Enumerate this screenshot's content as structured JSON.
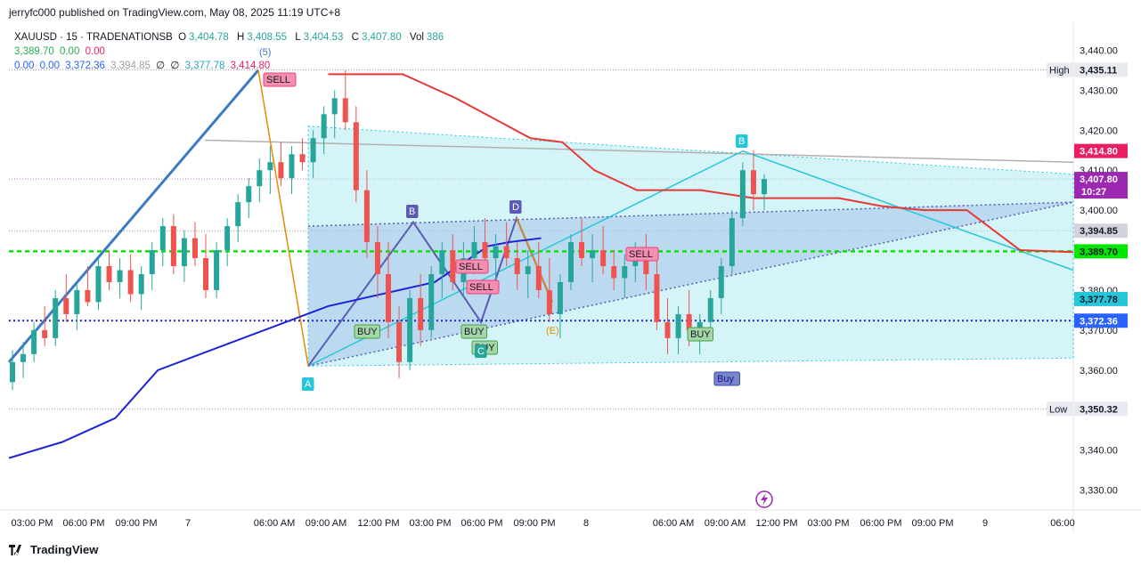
{
  "publish_line": "jerryfc000 published on TradingView.com, May 08, 2025 11:19 UTC+8",
  "legend": {
    "symbol": "XAUUSD · 15 · TRADENATIONSB",
    "o_label": "O",
    "o": "3,404.78",
    "h_label": "H",
    "h": "3,408.55",
    "l_label": "L",
    "l": "3,404.53",
    "c_label": "C",
    "c": "3,407.80",
    "vol_label": "Vol",
    "vol": "386",
    "row2": [
      "3,389.70",
      "0.00",
      "0.00"
    ],
    "row3": [
      "0.00",
      "0.00",
      "3,372.36",
      "3,394.85",
      "∅",
      "∅",
      "3,377.78",
      "3,414.80"
    ]
  },
  "brand": "TradingView",
  "colors": {
    "up": "#26a69a",
    "down": "#ef5350",
    "red_line": "#e53935",
    "blue_line": "#1e22d8",
    "green_line": "#3bd13b",
    "cyan": "#26c6da",
    "purple": "#5b5bb5",
    "orange": "#e68a00"
  },
  "chart_data": {
    "type": "candlestick",
    "ylim": [
      3325,
      3447
    ],
    "y_ticks": [
      "3,440.00",
      "3,430.00",
      "3,420.00",
      "3,410.00",
      "3,400.00",
      "3,380.00",
      "3,370.00",
      "3,360.00",
      "3,340.00",
      "3,330.00"
    ],
    "y_tick_values": [
      3440,
      3430,
      3420,
      3410,
      3400,
      3380,
      3370,
      3360,
      3340,
      3330
    ],
    "x_ticks": [
      "03:00 PM",
      "06:00 PM",
      "09:00 PM",
      "7",
      "06:00 AM",
      "09:00 AM",
      "12:00 PM",
      "03:00 PM",
      "06:00 PM",
      "09:00 PM",
      "8",
      "06:00 AM",
      "09:00 AM",
      "12:00 PM",
      "03:00 PM",
      "06:00 PM",
      "09:00 PM",
      "9",
      "06:00"
    ],
    "price_labels": [
      {
        "prefix": "High",
        "text": "3,435.11",
        "value": 3435.11,
        "bg": "#e8eaf0",
        "fg": "#131722"
      },
      {
        "prefix": "",
        "text": "3,414.80",
        "value": 3414.8,
        "bg": "#e91e63",
        "fg": "#ffffff"
      },
      {
        "prefix": "",
        "text": "3,407.80",
        "value": 3407.8,
        "bg": "#9c27b0",
        "fg": "#ffffff",
        "sub": "10:27"
      },
      {
        "prefix": "",
        "text": "3,394.85",
        "value": 3394.85,
        "bg": "#d1d4dc",
        "fg": "#131722"
      },
      {
        "prefix": "",
        "text": "3,389.70",
        "value": 3389.7,
        "bg": "#00e600",
        "fg": "#131722"
      },
      {
        "prefix": "",
        "text": "3,377.78",
        "value": 3377.78,
        "bg": "#26c6da",
        "fg": "#131722"
      },
      {
        "prefix": "",
        "text": "3,372.36",
        "value": 3372.36,
        "bg": "#2962ff",
        "fg": "#ffffff"
      },
      {
        "prefix": "Low",
        "text": "3,350.32",
        "value": 3350.32,
        "bg": "#e8eaf0",
        "fg": "#131722"
      }
    ],
    "candles_note": "OHLC estimated from the visible price action",
    "candles": [
      [
        3357,
        3365,
        3355,
        3362
      ],
      [
        3362,
        3367,
        3358,
        3364
      ],
      [
        3364,
        3372,
        3362,
        3370
      ],
      [
        3370,
        3376,
        3366,
        3368
      ],
      [
        3368,
        3380,
        3366,
        3378
      ],
      [
        3378,
        3384,
        3372,
        3374
      ],
      [
        3374,
        3382,
        3370,
        3380
      ],
      [
        3380,
        3386,
        3376,
        3377
      ],
      [
        3377,
        3388,
        3375,
        3386
      ],
      [
        3386,
        3390,
        3380,
        3382
      ],
      [
        3382,
        3388,
        3378,
        3385
      ],
      [
        3385,
        3389,
        3377,
        3379
      ],
      [
        3379,
        3386,
        3375,
        3384
      ],
      [
        3384,
        3392,
        3380,
        3390
      ],
      [
        3390,
        3398,
        3386,
        3396
      ],
      [
        3396,
        3399,
        3384,
        3386
      ],
      [
        3386,
        3395,
        3382,
        3393
      ],
      [
        3393,
        3397,
        3386,
        3388
      ],
      [
        3388,
        3394,
        3378,
        3380
      ],
      [
        3380,
        3392,
        3378,
        3390
      ],
      [
        3390,
        3398,
        3386,
        3396
      ],
      [
        3396,
        3404,
        3392,
        3402
      ],
      [
        3402,
        3408,
        3398,
        3406
      ],
      [
        3406,
        3413,
        3402,
        3410
      ],
      [
        3410,
        3416,
        3404,
        3412
      ],
      [
        3412,
        3417,
        3406,
        3408
      ],
      [
        3408,
        3416,
        3404,
        3414
      ],
      [
        3414,
        3418,
        3410,
        3412
      ],
      [
        3412,
        3420,
        3408,
        3418
      ],
      [
        3418,
        3426,
        3414,
        3424
      ],
      [
        3424,
        3430,
        3418,
        3428
      ],
      [
        3428,
        3435,
        3420,
        3422
      ],
      [
        3422,
        3426,
        3402,
        3405
      ],
      [
        3405,
        3410,
        3388,
        3392
      ],
      [
        3392,
        3396,
        3378,
        3384
      ],
      [
        3384,
        3392,
        3368,
        3372
      ],
      [
        3372,
        3376,
        3358,
        3362
      ],
      [
        3362,
        3380,
        3360,
        3378
      ],
      [
        3378,
        3384,
        3366,
        3370
      ],
      [
        3370,
        3386,
        3368,
        3384
      ],
      [
        3384,
        3392,
        3378,
        3390
      ],
      [
        3390,
        3394,
        3380,
        3382
      ],
      [
        3382,
        3392,
        3378,
        3388
      ],
      [
        3388,
        3396,
        3384,
        3392
      ],
      [
        3392,
        3398,
        3386,
        3388
      ],
      [
        3388,
        3394,
        3382,
        3391
      ],
      [
        3391,
        3397,
        3386,
        3388
      ],
      [
        3388,
        3392,
        3380,
        3384
      ],
      [
        3384,
        3390,
        3378,
        3386
      ],
      [
        3386,
        3392,
        3378,
        3380
      ],
      [
        3380,
        3388,
        3372,
        3374
      ],
      [
        3374,
        3384,
        3368,
        3382
      ],
      [
        3382,
        3394,
        3380,
        3392
      ],
      [
        3392,
        3398,
        3386,
        3388
      ],
      [
        3388,
        3394,
        3382,
        3390
      ],
      [
        3390,
        3396,
        3384,
        3386
      ],
      [
        3386,
        3390,
        3380,
        3383
      ],
      [
        3383,
        3389,
        3378,
        3386
      ],
      [
        3386,
        3392,
        3382,
        3388
      ],
      [
        3388,
        3394,
        3380,
        3384
      ],
      [
        3384,
        3390,
        3370,
        3372
      ],
      [
        3372,
        3378,
        3364,
        3368
      ],
      [
        3368,
        3376,
        3364,
        3374
      ],
      [
        3374,
        3380,
        3366,
        3370
      ],
      [
        3370,
        3374,
        3364,
        3372
      ],
      [
        3372,
        3380,
        3370,
        3378
      ],
      [
        3378,
        3388,
        3374,
        3386
      ],
      [
        3386,
        3400,
        3384,
        3398
      ],
      [
        3398,
        3412,
        3396,
        3410
      ],
      [
        3410,
        3415,
        3400,
        3404
      ],
      [
        3404,
        3409,
        3400,
        3407.8
      ]
    ],
    "series": [
      {
        "name": "",
        "color": "#e53935",
        "points": [
          [
            0.3,
            3434
          ],
          [
            0.37,
            3434
          ],
          [
            0.42,
            3428
          ],
          [
            0.49,
            3418
          ],
          [
            0.52,
            3417
          ],
          [
            0.55,
            3410
          ],
          [
            0.59,
            3405
          ],
          [
            0.63,
            3405
          ],
          [
            0.65,
            3405
          ],
          [
            0.7,
            3403
          ],
          [
            0.78,
            3403
          ],
          [
            0.82,
            3401
          ],
          [
            0.86,
            3400
          ],
          [
            0.9,
            3400
          ],
          [
            0.95,
            3390
          ],
          [
            1,
            3389.5
          ]
        ]
      },
      {
        "name": "",
        "color": "#1e22d8",
        "points": [
          [
            0,
            3338
          ],
          [
            0.05,
            3342
          ],
          [
            0.1,
            3348
          ],
          [
            0.14,
            3360
          ],
          [
            0.2,
            3366
          ],
          [
            0.3,
            3376
          ],
          [
            0.4,
            3382
          ],
          [
            0.45,
            3391
          ],
          [
            0.47,
            3392
          ],
          [
            0.5,
            3393
          ]
        ]
      }
    ],
    "annotations": [
      "(5)",
      "SELL",
      "BUY",
      "BUY",
      "BUY",
      "SELL",
      "SELL",
      "SELL",
      "BUY",
      "Buy",
      "B",
      "D",
      "(E)",
      "A",
      "C",
      "B"
    ]
  }
}
